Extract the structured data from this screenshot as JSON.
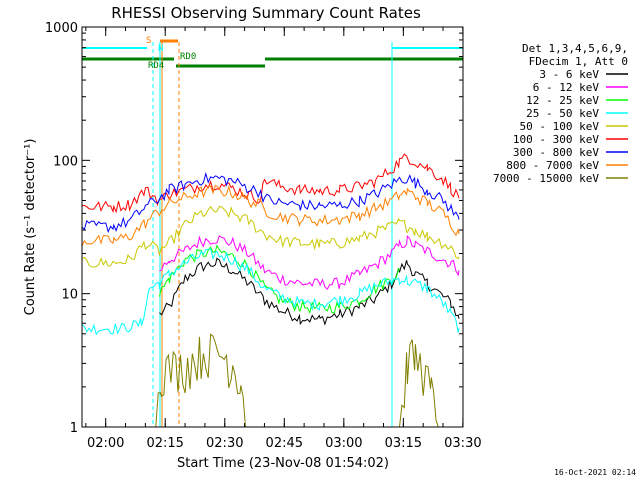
{
  "chart_data": {
    "type": "line",
    "title": "RHESSI Observing Summary Count Rates",
    "xlabel": "Start Time (23-Nov-08 01:54:02)",
    "ylabel": "Count Rate (s⁻¹ detector⁻¹)",
    "y_scale": "log",
    "ylim": [
      1,
      1000
    ],
    "xlim_minutes_from_start": [
      0,
      96
    ],
    "x_ticks": [
      {
        "label": "02:00",
        "t": 5.97
      },
      {
        "label": "02:15",
        "t": 20.97
      },
      {
        "label": "02:30",
        "t": 35.97
      },
      {
        "label": "02:45",
        "t": 50.97
      },
      {
        "label": "03:00",
        "t": 65.97
      },
      {
        "label": "03:15",
        "t": 80.97
      },
      {
        "label": "03:30",
        "t": 95.97
      }
    ],
    "y_ticks": [
      {
        "label": "1",
        "v": 1
      },
      {
        "label": "10",
        "v": 10
      },
      {
        "label": "100",
        "v": 100
      },
      {
        "label": "1000",
        "v": 1000
      }
    ],
    "legend": {
      "position": "top-right",
      "header": [
        "Det 1,3,4,5,6,9,",
        "FDecim 1, Att 0"
      ]
    },
    "series": [
      {
        "name": "3 - 6 keV",
        "color": "#000000",
        "points": [
          [
            19.5,
            7
          ],
          [
            22,
            8
          ],
          [
            26,
            13
          ],
          [
            30,
            16
          ],
          [
            34,
            17
          ],
          [
            38,
            15
          ],
          [
            42,
            12
          ],
          [
            46,
            9
          ],
          [
            50,
            7.5
          ],
          [
            55,
            6.6
          ],
          [
            60,
            6.4
          ],
          [
            65,
            7
          ],
          [
            70,
            8
          ],
          [
            74,
            9.2
          ],
          [
            78,
            12
          ],
          [
            80,
            15
          ],
          [
            82,
            17
          ],
          [
            84,
            14
          ],
          [
            87,
            12
          ],
          [
            91,
            9.5
          ],
          [
            93,
            8.5
          ],
          [
            95,
            6.5
          ]
        ]
      },
      {
        "name": "6 - 12 keV",
        "color": "#ff00ff",
        "points": [
          [
            19.5,
            15
          ],
          [
            22,
            18
          ],
          [
            26,
            21
          ],
          [
            30,
            25
          ],
          [
            34,
            26
          ],
          [
            38,
            24
          ],
          [
            42,
            20
          ],
          [
            46,
            15
          ],
          [
            50,
            13
          ],
          [
            55,
            12
          ],
          [
            60,
            11.8
          ],
          [
            65,
            12
          ],
          [
            70,
            14
          ],
          [
            74,
            16.5
          ],
          [
            78,
            20
          ],
          [
            80,
            23
          ],
          [
            82,
            25
          ],
          [
            84,
            23
          ],
          [
            87,
            21
          ],
          [
            91,
            18
          ],
          [
            93,
            17
          ],
          [
            95,
            15
          ]
        ]
      },
      {
        "name": "12 - 25 keV",
        "color": "#00ff00",
        "points": [
          [
            19.5,
            10
          ],
          [
            22,
            13
          ],
          [
            26,
            18
          ],
          [
            30,
            20
          ],
          [
            34,
            21
          ],
          [
            38,
            19
          ],
          [
            42,
            16
          ],
          [
            46,
            11
          ],
          [
            50,
            9
          ],
          [
            55,
            8
          ],
          [
            60,
            7.8
          ],
          [
            65,
            8
          ],
          [
            70,
            9
          ],
          [
            74,
            11
          ],
          [
            78,
            13
          ],
          [
            80,
            15
          ]
        ]
      },
      {
        "name": "25 - 50 keV",
        "color": "#00ffff",
        "points": [
          [
            0,
            5.5
          ],
          [
            10,
            5.5
          ],
          [
            15,
            6
          ],
          [
            17,
            11
          ],
          [
            19.5,
            12
          ],
          [
            22,
            14
          ],
          [
            26,
            17
          ],
          [
            30,
            19.5
          ],
          [
            34,
            20
          ],
          [
            38,
            18
          ],
          [
            42,
            15
          ],
          [
            46,
            11
          ],
          [
            50,
            9.5
          ],
          [
            55,
            8.5
          ],
          [
            60,
            8.4
          ],
          [
            65,
            9
          ],
          [
            70,
            10
          ],
          [
            74,
            11.5
          ],
          [
            78,
            12.5
          ],
          [
            80,
            13
          ],
          [
            82,
            12.5
          ],
          [
            84,
            12
          ],
          [
            87,
            11
          ],
          [
            91,
            8.5
          ],
          [
            93,
            7
          ],
          [
            95,
            5.5
          ]
        ]
      },
      {
        "name": "50 - 100 keV",
        "color": "#c8c800",
        "points": [
          [
            0,
            17
          ],
          [
            8,
            17
          ],
          [
            12,
            18
          ],
          [
            16,
            24
          ],
          [
            19.5,
            21
          ],
          [
            22,
            24
          ],
          [
            26,
            33
          ],
          [
            30,
            40
          ],
          [
            34,
            42
          ],
          [
            38,
            40
          ],
          [
            42,
            35
          ],
          [
            46,
            28
          ],
          [
            50,
            25
          ],
          [
            55,
            24
          ],
          [
            60,
            23.5
          ],
          [
            65,
            24
          ],
          [
            70,
            26
          ],
          [
            74,
            29
          ],
          [
            78,
            32
          ],
          [
            80,
            34
          ],
          [
            82,
            32
          ],
          [
            84,
            30
          ],
          [
            87,
            27
          ],
          [
            91,
            24
          ],
          [
            93,
            22
          ],
          [
            95,
            19
          ]
        ]
      },
      {
        "name": "100 - 300 keV",
        "color": "#ff0000",
        "points": [
          [
            0,
            45
          ],
          [
            8,
            45
          ],
          [
            12,
            47
          ],
          [
            16,
            60
          ],
          [
            19.5,
            50
          ],
          [
            22,
            56
          ],
          [
            26,
            60
          ],
          [
            30,
            65
          ],
          [
            34,
            67
          ],
          [
            38,
            62
          ],
          [
            42,
            55
          ],
          [
            45,
            52
          ],
          [
            46,
            72
          ],
          [
            50,
            64
          ],
          [
            55,
            60
          ],
          [
            60,
            59
          ],
          [
            65,
            60
          ],
          [
            70,
            64
          ],
          [
            74,
            70
          ],
          [
            78,
            86
          ],
          [
            80,
            98
          ],
          [
            82,
            106
          ],
          [
            84,
            98
          ],
          [
            87,
            88
          ],
          [
            91,
            72
          ],
          [
            93,
            62
          ],
          [
            95,
            52
          ]
        ]
      },
      {
        "name": "300 - 800 keV",
        "color": "#0000ff",
        "points": [
          [
            0,
            32
          ],
          [
            8,
            32
          ],
          [
            12,
            35
          ],
          [
            16,
            45
          ],
          [
            19.5,
            52
          ],
          [
            22,
            60
          ],
          [
            26,
            66
          ],
          [
            30,
            72
          ],
          [
            34,
            74
          ],
          [
            38,
            70
          ],
          [
            42,
            62
          ],
          [
            45,
            58
          ],
          [
            46,
            52
          ],
          [
            50,
            48
          ],
          [
            55,
            46
          ],
          [
            60,
            45.5
          ],
          [
            65,
            46
          ],
          [
            70,
            50
          ],
          [
            74,
            56
          ],
          [
            78,
            66
          ],
          [
            80,
            72
          ],
          [
            82,
            74
          ],
          [
            84,
            68
          ],
          [
            87,
            60
          ],
          [
            91,
            50
          ],
          [
            93,
            43
          ],
          [
            95,
            36
          ]
        ]
      },
      {
        "name": "800 - 7000 keV",
        "color": "#ff8000",
        "points": [
          [
            0,
            25
          ],
          [
            8,
            25
          ],
          [
            12,
            27
          ],
          [
            16,
            34
          ],
          [
            19.5,
            42
          ],
          [
            22,
            48
          ],
          [
            26,
            53
          ],
          [
            30,
            58
          ],
          [
            34,
            60
          ],
          [
            38,
            57
          ],
          [
            42,
            50
          ],
          [
            45,
            46
          ],
          [
            46,
            42
          ],
          [
            50,
            38
          ],
          [
            55,
            36
          ],
          [
            60,
            35.5
          ],
          [
            65,
            36
          ],
          [
            70,
            39
          ],
          [
            74,
            44
          ],
          [
            78,
            50
          ],
          [
            80,
            55
          ],
          [
            82,
            58
          ],
          [
            84,
            54
          ],
          [
            87,
            48
          ],
          [
            91,
            40
          ],
          [
            93,
            34
          ],
          [
            95,
            28
          ]
        ]
      },
      {
        "name": "7000 - 15000 keV",
        "color": "#808000",
        "points": [
          [
            18,
            1
          ],
          [
            20,
            3
          ],
          [
            26,
            3.2
          ],
          [
            30,
            4
          ],
          [
            34,
            4.2
          ],
          [
            38,
            3.3
          ],
          [
            40,
            2.5
          ],
          [
            42,
            1
          ],
          [
            80,
            1
          ],
          [
            82,
            3.6
          ],
          [
            84,
            3.7
          ],
          [
            86,
            3
          ],
          [
            88,
            2
          ],
          [
            90,
            1
          ]
        ]
      }
    ],
    "state_bars": [
      {
        "label": "S",
        "color": "#ff8000"
      },
      {
        "label": "N",
        "color": "#00ffff"
      },
      {
        "label": "RD0",
        "color": "#008000"
      },
      {
        "label": "RD4",
        "color": "#008000"
      }
    ]
  },
  "footer": {
    "timestamp": "16-Oct-2021 02:14"
  }
}
